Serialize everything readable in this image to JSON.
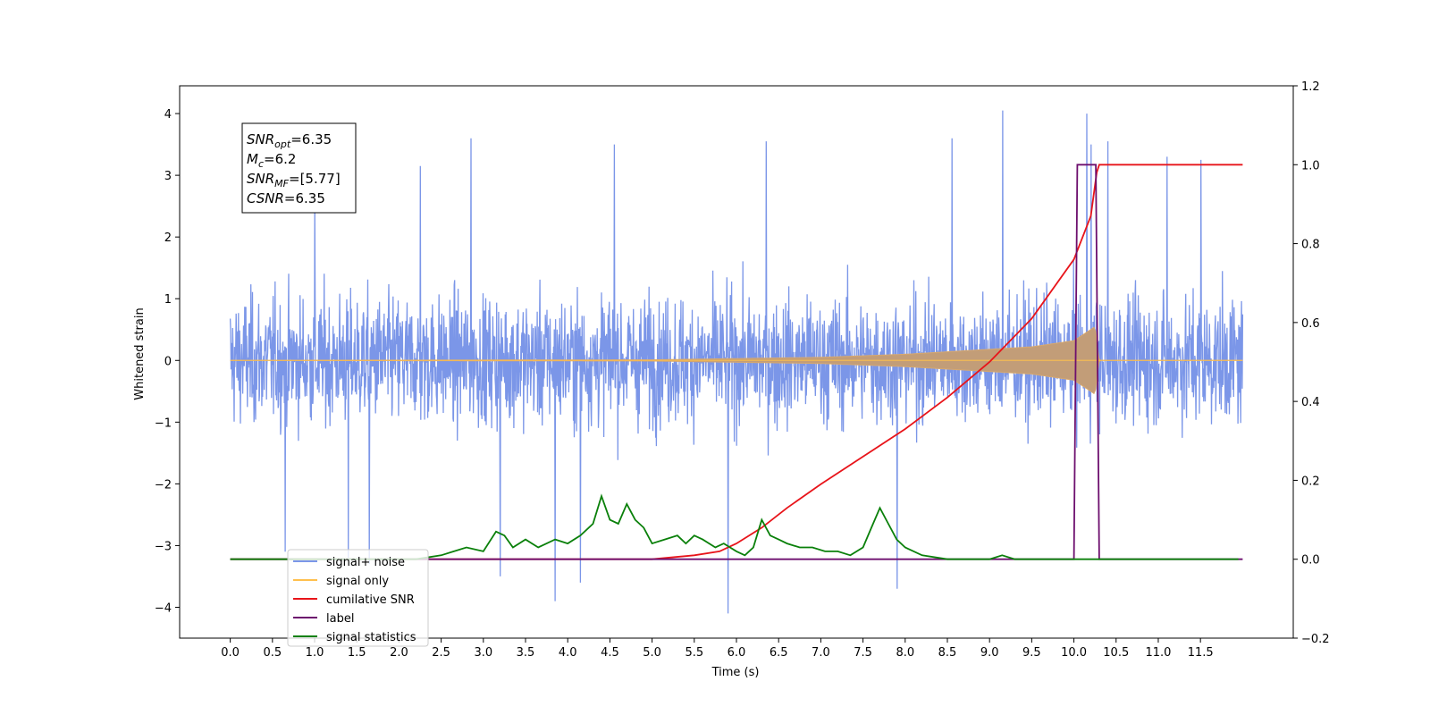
{
  "chart_data": {
    "type": "line",
    "title": "",
    "xlabel": "Time (s)",
    "ylabel": "Whitened strain",
    "y2label": "",
    "xlim": [
      -0.6,
      12.6
    ],
    "ylim": [
      -4.5,
      4.45
    ],
    "y2lim": [
      -0.2,
      1.2
    ],
    "xticks": [
      "0.0",
      "0.5",
      "1.0",
      "1.5",
      "2.0",
      "2.5",
      "3.0",
      "3.5",
      "4.0",
      "4.5",
      "5.0",
      "5.5",
      "6.0",
      "6.5",
      "7.0",
      "7.5",
      "8.0",
      "8.5",
      "9.0",
      "9.5",
      "10.0",
      "10.5",
      "11.0",
      "11.5"
    ],
    "yticks": [
      "−4",
      "−3",
      "−2",
      "−1",
      "0",
      "1",
      "2",
      "3",
      "4"
    ],
    "y2ticks": [
      "−0.2",
      "0.0",
      "0.2",
      "0.4",
      "0.6",
      "0.8",
      "1.0",
      "1.2"
    ],
    "grid": false,
    "legend_position": "lower-left",
    "annotation": {
      "lines": [
        {
          "sym": "SNR",
          "sub": "opt",
          "val": "=6.35"
        },
        {
          "sym": "M",
          "sub": "c",
          "val": "=6.2"
        },
        {
          "sym": "SNR",
          "sub": "MF",
          "val": "=[5.77]"
        },
        {
          "sym": "CSNR",
          "sub": "",
          "val": "=6.35"
        }
      ]
    },
    "series": [
      {
        "name": "signal+ noise",
        "color": "#7b96e8",
        "axis": "left",
        "description_range": [
          0.0,
          12.0
        ],
        "typical_amplitude": 1.0,
        "peaks": [
          [
            0.65,
            -3.1
          ],
          [
            1.0,
            2.6
          ],
          [
            1.4,
            -3.2
          ],
          [
            1.65,
            -3.3
          ],
          [
            2.85,
            3.6
          ],
          [
            2.25,
            3.15
          ],
          [
            3.2,
            -3.5
          ],
          [
            3.85,
            -3.9
          ],
          [
            4.15,
            -3.6
          ],
          [
            4.55,
            3.5
          ],
          [
            5.9,
            -4.1
          ],
          [
            6.35,
            3.55
          ],
          [
            7.9,
            -3.7
          ],
          [
            8.55,
            3.6
          ],
          [
            9.15,
            4.05
          ],
          [
            10.2,
            3.5
          ],
          [
            10.4,
            3.55
          ],
          [
            10.15,
            4.0
          ],
          [
            11.1,
            3.3
          ],
          [
            11.5,
            3.25
          ]
        ]
      },
      {
        "name": "signal only",
        "color": "#ffc04d",
        "axis": "left",
        "envelope": [
          [
            0.0,
            0.0
          ],
          [
            5.0,
            0.01
          ],
          [
            7.0,
            0.05
          ],
          [
            8.0,
            0.1
          ],
          [
            9.0,
            0.18
          ],
          [
            9.5,
            0.22
          ],
          [
            10.0,
            0.32
          ],
          [
            10.2,
            0.5
          ],
          [
            10.25,
            0.55
          ],
          [
            10.3,
            0.0
          ],
          [
            12.0,
            0.0
          ]
        ]
      },
      {
        "name": "cumilative SNR",
        "color": "#e8141a",
        "axis": "right",
        "x": [
          0.0,
          5.0,
          5.5,
          5.8,
          6.0,
          6.3,
          6.6,
          7.0,
          7.5,
          8.0,
          8.5,
          9.0,
          9.5,
          10.0,
          10.2,
          10.27,
          10.3,
          12.0
        ],
        "y": [
          0.0,
          0.0,
          0.01,
          0.02,
          0.04,
          0.08,
          0.13,
          0.19,
          0.26,
          0.33,
          0.41,
          0.5,
          0.61,
          0.76,
          0.87,
          0.98,
          1.0,
          1.0
        ]
      },
      {
        "name": "label",
        "color": "#6d0f6e",
        "axis": "right",
        "x": [
          0.0,
          10.0,
          10.04,
          10.06,
          10.24,
          10.26,
          10.3,
          12.0
        ],
        "y": [
          0.0,
          0.0,
          1.0,
          1.0,
          1.0,
          1.0,
          0.0,
          0.0
        ]
      },
      {
        "name": "signal statistics",
        "color": "#0a800a",
        "axis": "right",
        "x": [
          0.0,
          2.2,
          2.5,
          2.65,
          2.8,
          3.0,
          3.15,
          3.25,
          3.35,
          3.5,
          3.65,
          3.75,
          3.85,
          4.0,
          4.15,
          4.3,
          4.4,
          4.5,
          4.6,
          4.7,
          4.8,
          4.9,
          5.0,
          5.15,
          5.3,
          5.4,
          5.5,
          5.6,
          5.75,
          5.85,
          6.0,
          6.1,
          6.2,
          6.3,
          6.4,
          6.5,
          6.6,
          6.75,
          6.9,
          7.05,
          7.2,
          7.35,
          7.5,
          7.6,
          7.7,
          7.8,
          7.9,
          8.0,
          8.2,
          8.5,
          9.0,
          9.15,
          9.3,
          9.6,
          9.9,
          10.3,
          11.0,
          11.95
        ],
        "y": [
          0.0,
          0.0,
          0.01,
          0.02,
          0.03,
          0.02,
          0.07,
          0.06,
          0.03,
          0.05,
          0.03,
          0.04,
          0.05,
          0.04,
          0.06,
          0.09,
          0.16,
          0.1,
          0.09,
          0.14,
          0.1,
          0.08,
          0.04,
          0.05,
          0.06,
          0.04,
          0.06,
          0.05,
          0.03,
          0.04,
          0.02,
          0.01,
          0.03,
          0.1,
          0.06,
          0.05,
          0.04,
          0.03,
          0.03,
          0.02,
          0.02,
          0.01,
          0.03,
          0.08,
          0.13,
          0.09,
          0.05,
          0.03,
          0.01,
          0.0,
          0.0,
          0.01,
          0.0,
          0.0,
          0.0,
          0.0,
          0.0,
          0.0
        ]
      }
    ],
    "legend": [
      {
        "label": "signal+ noise",
        "color": "#7b96e8"
      },
      {
        "label": "signal only",
        "color": "#ffc04d"
      },
      {
        "label": "cumilative SNR",
        "color": "#e8141a"
      },
      {
        "label": "label",
        "color": "#6d0f6e"
      },
      {
        "label": "signal statistics",
        "color": "#0a800a"
      }
    ],
    "legend_hidden_text": "label only"
  }
}
